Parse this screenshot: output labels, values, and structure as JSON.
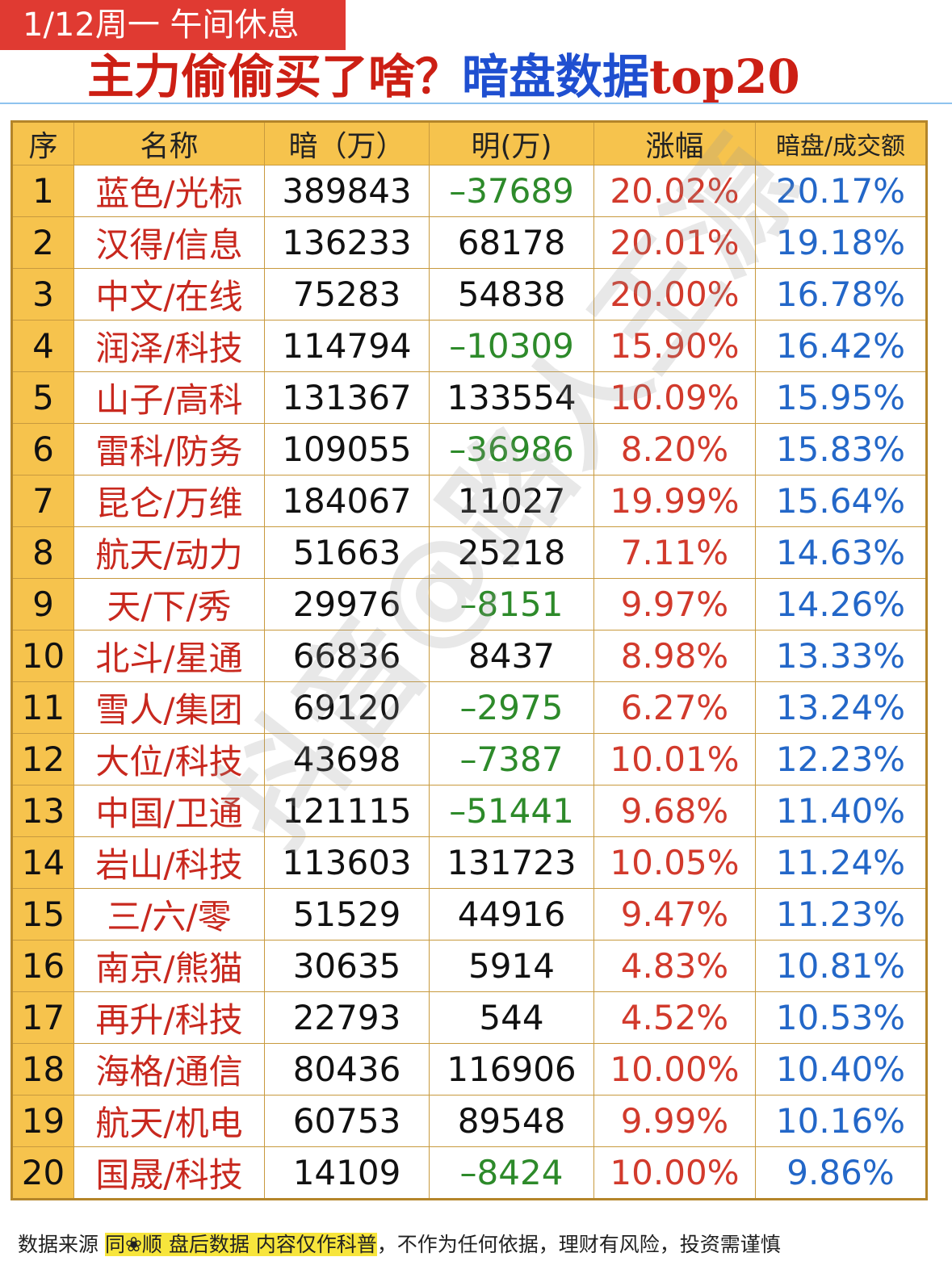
{
  "header": {
    "tag": "1/12周一  午间休息",
    "title_part1": "主力偷偷买了啥？",
    "title_part2": "暗盘数据",
    "title_part3": "top20"
  },
  "watermark": "抖音@路人王源",
  "colors": {
    "tag_bg": "#e03a32",
    "header_bg": "#f6c34d",
    "name_red": "#c8281e",
    "negative_green": "#2d8a2a",
    "change_red": "#d23a2c",
    "ratio_blue": "#2367c8"
  },
  "table": {
    "headers": [
      "序",
      "名称",
      "暗（万）",
      "明(万)",
      "涨幅",
      "暗盘/成交额"
    ],
    "rows": [
      {
        "idx": "1",
        "name": "蓝色/光标",
        "dark": "389843",
        "bright": "–37689",
        "neg": true,
        "chg": "20.02%",
        "ratio": "20.17%"
      },
      {
        "idx": "2",
        "name": "汉得/信息",
        "dark": "136233",
        "bright": "68178",
        "neg": false,
        "chg": "20.01%",
        "ratio": "19.18%"
      },
      {
        "idx": "3",
        "name": "中文/在线",
        "dark": "75283",
        "bright": "54838",
        "neg": false,
        "chg": "20.00%",
        "ratio": "16.78%"
      },
      {
        "idx": "4",
        "name": "润泽/科技",
        "dark": "114794",
        "bright": "–10309",
        "neg": true,
        "chg": "15.90%",
        "ratio": "16.42%"
      },
      {
        "idx": "5",
        "name": "山子/高科",
        "dark": "131367",
        "bright": "133554",
        "neg": false,
        "chg": "10.09%",
        "ratio": "15.95%"
      },
      {
        "idx": "6",
        "name": "雷科/防务",
        "dark": "109055",
        "bright": "–36986",
        "neg": true,
        "chg": "8.20%",
        "ratio": "15.83%"
      },
      {
        "idx": "7",
        "name": "昆仑/万维",
        "dark": "184067",
        "bright": "11027",
        "neg": false,
        "chg": "19.99%",
        "ratio": "15.64%"
      },
      {
        "idx": "8",
        "name": "航天/动力",
        "dark": "51663",
        "bright": "25218",
        "neg": false,
        "chg": "7.11%",
        "ratio": "14.63%"
      },
      {
        "idx": "9",
        "name": "天/下/秀",
        "dark": "29976",
        "bright": "–8151",
        "neg": true,
        "chg": "9.97%",
        "ratio": "14.26%"
      },
      {
        "idx": "10",
        "name": "北斗/星通",
        "dark": "66836",
        "bright": "8437",
        "neg": false,
        "chg": "8.98%",
        "ratio": "13.33%"
      },
      {
        "idx": "11",
        "name": "雪人/集团",
        "dark": "69120",
        "bright": "–2975",
        "neg": true,
        "chg": "6.27%",
        "ratio": "13.24%"
      },
      {
        "idx": "12",
        "name": "大位/科技",
        "dark": "43698",
        "bright": "–7387",
        "neg": true,
        "chg": "10.01%",
        "ratio": "12.23%"
      },
      {
        "idx": "13",
        "name": "中国/卫通",
        "dark": "121115",
        "bright": "–51441",
        "neg": true,
        "chg": "9.68%",
        "ratio": "11.40%"
      },
      {
        "idx": "14",
        "name": "岩山/科技",
        "dark": "113603",
        "bright": "131723",
        "neg": false,
        "chg": "10.05%",
        "ratio": "11.24%"
      },
      {
        "idx": "15",
        "name": "三/六/零",
        "dark": "51529",
        "bright": "44916",
        "neg": false,
        "chg": "9.47%",
        "ratio": "11.23%"
      },
      {
        "idx": "16",
        "name": "南京/熊猫",
        "dark": "30635",
        "bright": "5914",
        "neg": false,
        "chg": "4.83%",
        "ratio": "10.81%"
      },
      {
        "idx": "17",
        "name": "再升/科技",
        "dark": "22793",
        "bright": "544",
        "neg": false,
        "chg": "4.52%",
        "ratio": "10.53%"
      },
      {
        "idx": "18",
        "name": "海格/通信",
        "dark": "80436",
        "bright": "116906",
        "neg": false,
        "chg": "10.00%",
        "ratio": "10.40%"
      },
      {
        "idx": "19",
        "name": "航天/机电",
        "dark": "60753",
        "bright": "89548",
        "neg": false,
        "chg": "9.99%",
        "ratio": "10.16%"
      },
      {
        "idx": "20",
        "name": "国晟/科技",
        "dark": "14109",
        "bright": "–8424",
        "neg": true,
        "chg": "10.00%",
        "ratio": "9.86%"
      }
    ]
  },
  "footer": {
    "prefix": "数据来源 ",
    "source": "同❀顺  盘后数据  内容仅作科普",
    "suffix": "，不作为任何依据，理财有风险，投资需谨慎"
  }
}
